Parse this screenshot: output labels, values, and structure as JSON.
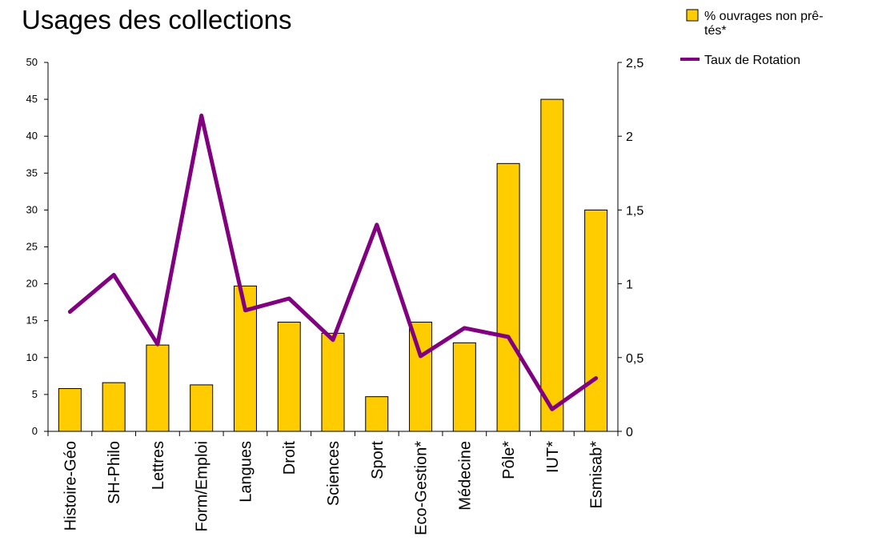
{
  "chart_data": {
    "type": "bar",
    "title": "Usages des collections",
    "categories": [
      "Histoire-Géo",
      "SH-Philo",
      "Lettres",
      "Form/Emploi",
      "Langues",
      "Droit",
      "Sciences",
      "Sport",
      "Eco-Gestion*",
      "Médecine",
      "Pôle*",
      "IUT*",
      "Esmisab*"
    ],
    "series": [
      {
        "name": "% ouvrages non prêtés*",
        "type": "bar",
        "axis": "left",
        "color": "#ffcc00",
        "values": [
          5.8,
          6.6,
          11.7,
          6.3,
          19.7,
          14.8,
          13.3,
          4.7,
          14.8,
          12.0,
          36.3,
          45.0,
          30.0
        ]
      },
      {
        "name": "Taux de Rotation",
        "type": "line",
        "axis": "right",
        "color": "#800080",
        "values": [
          0.81,
          1.06,
          0.59,
          2.14,
          0.82,
          0.9,
          0.62,
          1.4,
          0.51,
          0.7,
          0.64,
          0.15,
          0.36
        ]
      }
    ],
    "y_left": {
      "min": 0,
      "max": 50,
      "step": 5,
      "ticks": [
        "0",
        "5",
        "10",
        "15",
        "20",
        "25",
        "30",
        "35",
        "40",
        "45",
        "50"
      ]
    },
    "y_right": {
      "min": 0,
      "max": 2.5,
      "step": 0.5,
      "ticks": [
        "0",
        "0,5",
        "1",
        "1,5",
        "2",
        "2,5"
      ]
    },
    "grid": false,
    "legend": {
      "position": "top-right",
      "entries": [
        {
          "label_lines": [
            "% ouvrages non prê-",
            "tés*"
          ],
          "color": "#ffcc00",
          "kind": "box"
        },
        {
          "label_lines": [
            "Taux de Rotation"
          ],
          "color": "#800080",
          "kind": "line"
        }
      ]
    }
  }
}
